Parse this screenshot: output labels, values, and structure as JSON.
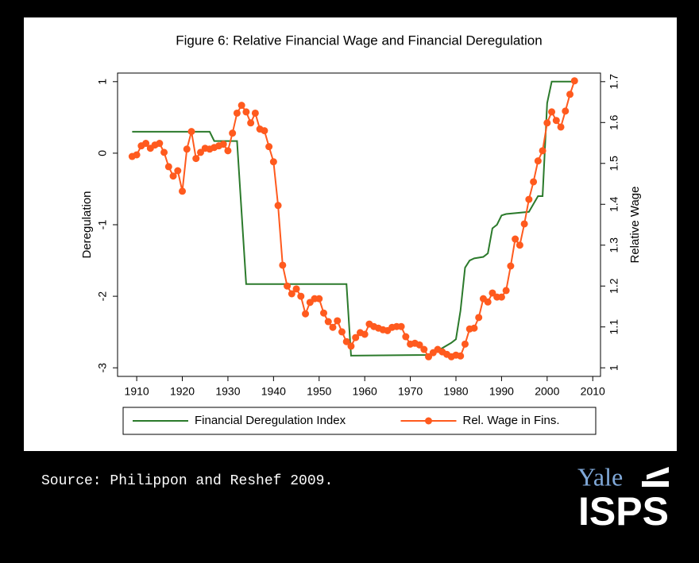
{
  "chart_data": {
    "type": "line",
    "title": "Figure 6: Relative Financial Wage and Financial Deregulation",
    "y_label": "Deregulation",
    "y2_label": "Relative Wage",
    "xlim": [
      1905.8,
      2011.7
    ],
    "xticks": [
      1910,
      1920,
      1930,
      1940,
      1950,
      1960,
      1970,
      1980,
      1990,
      2000,
      2010
    ],
    "ylim": [
      -3.12,
      1.12
    ],
    "yticks": [
      1,
      0,
      -1,
      -2,
      -3
    ],
    "y2lim": [
      0.979,
      1.721
    ],
    "y2ticks": [
      1,
      1.1,
      1.2,
      1.3,
      1.4,
      1.5,
      1.6,
      1.7
    ],
    "legend": "bottom",
    "series": [
      {
        "name": "Financial Deregulation Index",
        "color": "#2b7a2b",
        "x": [
          1909,
          1926,
          1927,
          1932,
          1934,
          1956,
          1957,
          1974,
          1975,
          1979,
          1980,
          1981,
          1982,
          1983,
          1984,
          1986,
          1987,
          1988,
          1989,
          1990,
          1991,
          1996,
          1998,
          1999,
          2000,
          2001,
          2006
        ],
        "values": [
          0.3,
          0.3,
          0.17,
          0.17,
          -1.83,
          -1.83,
          -2.83,
          -2.82,
          -2.8,
          -2.65,
          -2.6,
          -2.2,
          -1.6,
          -1.5,
          -1.47,
          -1.45,
          -1.4,
          -1.05,
          -1.0,
          -0.87,
          -0.85,
          -0.82,
          -0.6,
          -0.6,
          0.7,
          1.0,
          1.0
        ]
      },
      {
        "name": "Rel. Wage in Fins.",
        "color": "#ff5a1e",
        "axis": "y2",
        "marker": "circle",
        "x": [
          1909,
          1910,
          1911,
          1912,
          1913,
          1914,
          1915,
          1916,
          1917,
          1918,
          1919,
          1920,
          1921,
          1922,
          1923,
          1924,
          1925,
          1926,
          1927,
          1928,
          1929,
          1930,
          1931,
          1932,
          1933,
          1934,
          1935,
          1936,
          1937,
          1938,
          1939,
          1940,
          1941,
          1942,
          1943,
          1944,
          1945,
          1946,
          1947,
          1948,
          1949,
          1950,
          1951,
          1952,
          1953,
          1954,
          1955,
          1956,
          1957,
          1958,
          1959,
          1960,
          1961,
          1962,
          1963,
          1964,
          1965,
          1966,
          1967,
          1968,
          1969,
          1970,
          1971,
          1972,
          1973,
          1974,
          1975,
          1976,
          1977,
          1978,
          1979,
          1980,
          1981,
          1982,
          1983,
          1984,
          1985,
          1986,
          1987,
          1988,
          1989,
          1990,
          1991,
          1992,
          1993,
          1994,
          1995,
          1996,
          1997,
          1998,
          1999,
          2000,
          2001,
          2002,
          2003,
          2004,
          2005,
          2006
        ],
        "values": [
          1.517,
          1.521,
          1.543,
          1.549,
          1.537,
          1.545,
          1.549,
          1.527,
          1.492,
          1.469,
          1.482,
          1.432,
          1.535,
          1.578,
          1.512,
          1.527,
          1.537,
          1.535,
          1.539,
          1.543,
          1.547,
          1.531,
          1.574,
          1.623,
          1.642,
          1.626,
          1.599,
          1.623,
          1.584,
          1.58,
          1.541,
          1.504,
          1.397,
          1.251,
          1.2,
          1.181,
          1.193,
          1.175,
          1.132,
          1.16,
          1.169,
          1.169,
          1.134,
          1.113,
          1.099,
          1.115,
          1.088,
          1.064,
          1.053,
          1.074,
          1.086,
          1.082,
          1.107,
          1.101,
          1.097,
          1.093,
          1.091,
          1.099,
          1.101,
          1.101,
          1.076,
          1.058,
          1.06,
          1.056,
          1.045,
          1.027,
          1.037,
          1.045,
          1.039,
          1.033,
          1.027,
          1.031,
          1.029,
          1.058,
          1.095,
          1.097,
          1.123,
          1.169,
          1.161,
          1.183,
          1.173,
          1.173,
          1.189,
          1.249,
          1.315,
          1.3,
          1.352,
          1.412,
          1.455,
          1.506,
          1.531,
          1.599,
          1.626,
          1.605,
          1.589,
          1.628,
          1.669,
          1.702
        ]
      }
    ]
  },
  "source": "Source: Philippon and Reshef 2009.",
  "logo": {
    "top": "Yale",
    "bottom": "ISPS"
  }
}
